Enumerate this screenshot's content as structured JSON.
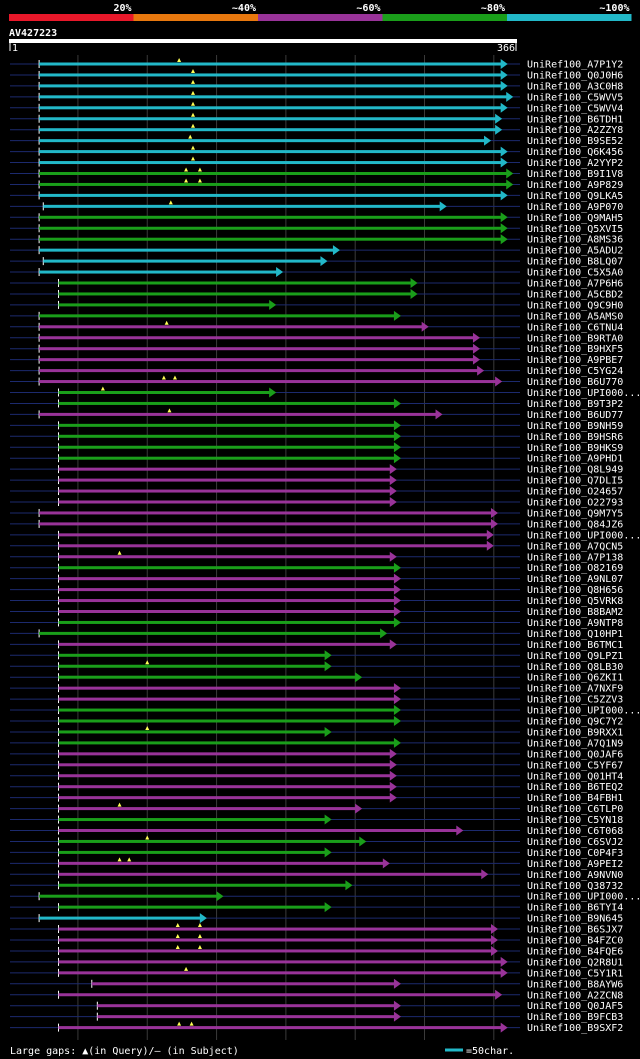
{
  "chart_data": {
    "type": "alignment-overview",
    "query": {
      "name": "AV427223",
      "start": 1,
      "end": 366
    },
    "identity_legend": [
      {
        "label": "20%",
        "color": "#e8182a"
      },
      {
        "label": "~40%",
        "color": "#e8780e"
      },
      {
        "label": "~60%",
        "color": "#993399"
      },
      {
        "label": "~80%",
        "color": "#1a9e1a"
      },
      {
        "label": "~100%",
        "color": "#22b8c8"
      }
    ],
    "footer": {
      "gaps_label": "Large gaps: ▲(in Query)/– (in Subject)",
      "scale_label": "=50char.",
      "scale_chars": 50
    },
    "hits": [
      {
        "name": "UniRef100_A7P1Y2",
        "start": 22,
        "end": 360,
        "color": "#22b8c8",
        "gaps": [
          123
        ]
      },
      {
        "name": "UniRef100_Q0J0H6",
        "start": 22,
        "end": 360,
        "color": "#22b8c8",
        "gaps": [
          133
        ]
      },
      {
        "name": "UniRef100_A3C0H8",
        "start": 22,
        "end": 360,
        "color": "#22b8c8",
        "gaps": [
          133
        ]
      },
      {
        "name": "UniRef100_C5WVV5",
        "start": 22,
        "end": 364,
        "color": "#22b8c8",
        "gaps": [
          133
        ]
      },
      {
        "name": "UniRef100_C5WVV4",
        "start": 22,
        "end": 360,
        "color": "#22b8c8",
        "gaps": [
          133
        ]
      },
      {
        "name": "UniRef100_B6TDH1",
        "start": 22,
        "end": 356,
        "color": "#22b8c8",
        "gaps": [
          133
        ]
      },
      {
        "name": "UniRef100_A2ZZY8",
        "start": 22,
        "end": 356,
        "color": "#22b8c8",
        "gaps": [
          133
        ]
      },
      {
        "name": "UniRef100_B9SE52",
        "start": 22,
        "end": 348,
        "color": "#22b8c8",
        "gaps": [
          131
        ]
      },
      {
        "name": "UniRef100_Q6K456",
        "start": 22,
        "end": 360,
        "color": "#22b8c8",
        "gaps": [
          133
        ]
      },
      {
        "name": "UniRef100_A2YYP2",
        "start": 22,
        "end": 360,
        "color": "#22b8c8",
        "gaps": [
          133
        ]
      },
      {
        "name": "UniRef100_B9I1V8",
        "start": 22,
        "end": 364,
        "color": "#1a9e1a",
        "gaps": [
          128,
          138
        ]
      },
      {
        "name": "UniRef100_A9P829",
        "start": 22,
        "end": 364,
        "color": "#1a9e1a",
        "gaps": [
          128,
          138
        ]
      },
      {
        "name": "UniRef100_Q9LKA5",
        "start": 22,
        "end": 360,
        "color": "#22b8c8",
        "gaps": []
      },
      {
        "name": "UniRef100_A9P070",
        "start": 25,
        "end": 316,
        "color": "#22b8c8",
        "gaps": [
          117
        ]
      },
      {
        "name": "UniRef100_Q9MAH5",
        "start": 22,
        "end": 360,
        "color": "#1a9e1a",
        "gaps": []
      },
      {
        "name": "UniRef100_Q5XVI5",
        "start": 22,
        "end": 360,
        "color": "#1a9e1a",
        "gaps": []
      },
      {
        "name": "UniRef100_A8MS36",
        "start": 22,
        "end": 360,
        "color": "#1a9e1a",
        "gaps": []
      },
      {
        "name": "UniRef100_A5ADU2",
        "start": 22,
        "end": 239,
        "color": "#22b8c8",
        "gaps": []
      },
      {
        "name": "UniRef100_B8LQ07",
        "start": 25,
        "end": 230,
        "color": "#22b8c8",
        "gaps": []
      },
      {
        "name": "UniRef100_C5X5A0",
        "start": 22,
        "end": 198,
        "color": "#22b8c8",
        "gaps": []
      },
      {
        "name": "UniRef100_A7P6H6",
        "start": 36,
        "end": 295,
        "color": "#1a9e1a",
        "gaps": []
      },
      {
        "name": "UniRef100_A5CBD2",
        "start": 36,
        "end": 295,
        "color": "#1a9e1a",
        "gaps": []
      },
      {
        "name": "UniRef100_Q9C9H0",
        "start": 36,
        "end": 193,
        "color": "#1a9e1a",
        "gaps": []
      },
      {
        "name": "UniRef100_A5AMS0",
        "start": 22,
        "end": 283,
        "color": "#1a9e1a",
        "gaps": []
      },
      {
        "name": "UniRef100_C6TNU4",
        "start": 22,
        "end": 303,
        "color": "#993399",
        "gaps": [
          114
        ]
      },
      {
        "name": "UniRef100_B9RTA0",
        "start": 22,
        "end": 340,
        "color": "#993399",
        "gaps": []
      },
      {
        "name": "UniRef100_B9HXF5",
        "start": 22,
        "end": 340,
        "color": "#993399",
        "gaps": []
      },
      {
        "name": "UniRef100_A9PBE7",
        "start": 22,
        "end": 340,
        "color": "#993399",
        "gaps": []
      },
      {
        "name": "UniRef100_C5YG24",
        "start": 22,
        "end": 343,
        "color": "#993399",
        "gaps": []
      },
      {
        "name": "UniRef100_B6U770",
        "start": 22,
        "end": 356,
        "color": "#993399",
        "gaps": [
          112,
          120
        ]
      },
      {
        "name": "UniRef100_UPI000...",
        "start": 36,
        "end": 193,
        "color": "#1a9e1a",
        "gaps": [
          68
        ]
      },
      {
        "name": "UniRef100_B9T3P2",
        "start": 36,
        "end": 283,
        "color": "#1a9e1a",
        "gaps": []
      },
      {
        "name": "UniRef100_B6UD77",
        "start": 22,
        "end": 313,
        "color": "#993399",
        "gaps": [
          116
        ]
      },
      {
        "name": "UniRef100_B9NH59",
        "start": 36,
        "end": 283,
        "color": "#1a9e1a",
        "gaps": []
      },
      {
        "name": "UniRef100_B9HSR6",
        "start": 36,
        "end": 283,
        "color": "#1a9e1a",
        "gaps": []
      },
      {
        "name": "UniRef100_B9HKS9",
        "start": 36,
        "end": 283,
        "color": "#1a9e1a",
        "gaps": []
      },
      {
        "name": "UniRef100_A9PHD1",
        "start": 36,
        "end": 283,
        "color": "#1a9e1a",
        "gaps": []
      },
      {
        "name": "UniRef100_Q8L949",
        "start": 36,
        "end": 280,
        "color": "#993399",
        "gaps": []
      },
      {
        "name": "UniRef100_Q7DLI5",
        "start": 36,
        "end": 280,
        "color": "#993399",
        "gaps": []
      },
      {
        "name": "UniRef100_O24657",
        "start": 36,
        "end": 280,
        "color": "#993399",
        "gaps": []
      },
      {
        "name": "UniRef100_O22793",
        "start": 36,
        "end": 280,
        "color": "#993399",
        "gaps": []
      },
      {
        "name": "UniRef100_Q9M7Y5",
        "start": 22,
        "end": 353,
        "color": "#993399",
        "gaps": []
      },
      {
        "name": "UniRef100_Q84JZ6",
        "start": 22,
        "end": 353,
        "color": "#993399",
        "gaps": []
      },
      {
        "name": "UniRef100_UPI000...",
        "start": 36,
        "end": 350,
        "color": "#993399",
        "gaps": []
      },
      {
        "name": "UniRef100_A7QCN5",
        "start": 36,
        "end": 350,
        "color": "#993399",
        "gaps": []
      },
      {
        "name": "UniRef100_A7P138",
        "start": 36,
        "end": 280,
        "color": "#993399",
        "gaps": [
          80
        ]
      },
      {
        "name": "UniRef100_O82169",
        "start": 36,
        "end": 283,
        "color": "#1a9e1a",
        "gaps": []
      },
      {
        "name": "UniRef100_A9NL07",
        "start": 36,
        "end": 283,
        "color": "#993399",
        "gaps": []
      },
      {
        "name": "UniRef100_Q8H656",
        "start": 36,
        "end": 283,
        "color": "#993399",
        "gaps": []
      },
      {
        "name": "UniRef100_Q5VRK8",
        "start": 36,
        "end": 283,
        "color": "#993399",
        "gaps": []
      },
      {
        "name": "UniRef100_B8BAM2",
        "start": 36,
        "end": 283,
        "color": "#993399",
        "gaps": []
      },
      {
        "name": "UniRef100_A9NTP8",
        "start": 36,
        "end": 283,
        "color": "#1a9e1a",
        "gaps": []
      },
      {
        "name": "UniRef100_Q10HP1",
        "start": 22,
        "end": 273,
        "color": "#1a9e1a",
        "gaps": []
      },
      {
        "name": "UniRef100_B6TMC1",
        "start": 36,
        "end": 280,
        "color": "#993399",
        "gaps": []
      },
      {
        "name": "UniRef100_Q9LPZ1",
        "start": 36,
        "end": 233,
        "color": "#1a9e1a",
        "gaps": []
      },
      {
        "name": "UniRef100_Q8LB30",
        "start": 36,
        "end": 233,
        "color": "#1a9e1a",
        "gaps": [
          100
        ]
      },
      {
        "name": "UniRef100_Q6ZKI1",
        "start": 36,
        "end": 255,
        "color": "#1a9e1a",
        "gaps": []
      },
      {
        "name": "UniRef100_A7NXF9",
        "start": 36,
        "end": 283,
        "color": "#993399",
        "gaps": []
      },
      {
        "name": "UniRef100_C5ZZV3",
        "start": 36,
        "end": 283,
        "color": "#993399",
        "gaps": []
      },
      {
        "name": "UniRef100_UPI000...",
        "start": 36,
        "end": 283,
        "color": "#1a9e1a",
        "gaps": []
      },
      {
        "name": "UniRef100_Q9C7Y2",
        "start": 36,
        "end": 283,
        "color": "#1a9e1a",
        "gaps": []
      },
      {
        "name": "UniRef100_B9RXX1",
        "start": 36,
        "end": 233,
        "color": "#1a9e1a",
        "gaps": [
          100
        ]
      },
      {
        "name": "UniRef100_A7Q1N9",
        "start": 36,
        "end": 283,
        "color": "#1a9e1a",
        "gaps": []
      },
      {
        "name": "UniRef100_Q0JAF6",
        "start": 36,
        "end": 280,
        "color": "#993399",
        "gaps": []
      },
      {
        "name": "UniRef100_C5YF67",
        "start": 36,
        "end": 280,
        "color": "#993399",
        "gaps": []
      },
      {
        "name": "UniRef100_Q01HT4",
        "start": 36,
        "end": 280,
        "color": "#993399",
        "gaps": []
      },
      {
        "name": "UniRef100_B6TEQ2",
        "start": 36,
        "end": 280,
        "color": "#993399",
        "gaps": []
      },
      {
        "name": "UniRef100_B4FBH1",
        "start": 36,
        "end": 280,
        "color": "#993399",
        "gaps": []
      },
      {
        "name": "UniRef100_C6TLP0",
        "start": 36,
        "end": 255,
        "color": "#993399",
        "gaps": [
          80
        ]
      },
      {
        "name": "UniRef100_C5YN18",
        "start": 36,
        "end": 233,
        "color": "#1a9e1a",
        "gaps": []
      },
      {
        "name": "UniRef100_C6T068",
        "start": 36,
        "end": 328,
        "color": "#993399",
        "gaps": []
      },
      {
        "name": "UniRef100_C6SVJ2",
        "start": 36,
        "end": 258,
        "color": "#1a9e1a",
        "gaps": [
          100
        ]
      },
      {
        "name": "UniRef100_C0P4F3",
        "start": 36,
        "end": 233,
        "color": "#1a9e1a",
        "gaps": []
      },
      {
        "name": "UniRef100_A9PEI2",
        "start": 36,
        "end": 275,
        "color": "#993399",
        "gaps": [
          80,
          87
        ]
      },
      {
        "name": "UniRef100_A9NVN0",
        "start": 36,
        "end": 346,
        "color": "#993399",
        "gaps": []
      },
      {
        "name": "UniRef100_Q38732",
        "start": 36,
        "end": 248,
        "color": "#1a9e1a",
        "gaps": []
      },
      {
        "name": "UniRef100_UPI000...",
        "start": 22,
        "end": 155,
        "color": "#1a9e1a",
        "gaps": []
      },
      {
        "name": "UniRef100_B6TYI4",
        "start": 36,
        "end": 233,
        "color": "#1a9e1a",
        "gaps": []
      },
      {
        "name": "UniRef100_B9N645",
        "start": 22,
        "end": 143,
        "color": "#22b8c8",
        "gaps": []
      },
      {
        "name": "UniRef100_B6SJX7",
        "start": 36,
        "end": 353,
        "color": "#993399",
        "gaps": [
          122,
          138
        ]
      },
      {
        "name": "UniRef100_B4FZC0",
        "start": 36,
        "end": 353,
        "color": "#993399",
        "gaps": [
          122,
          138
        ]
      },
      {
        "name": "UniRef100_B4FQE6",
        "start": 36,
        "end": 353,
        "color": "#993399",
        "gaps": [
          122,
          138
        ]
      },
      {
        "name": "UniRef100_Q2R8U1",
        "start": 36,
        "end": 360,
        "color": "#993399",
        "gaps": []
      },
      {
        "name": "UniRef100_C5Y1R1",
        "start": 36,
        "end": 360,
        "color": "#993399",
        "gaps": [
          128
        ]
      },
      {
        "name": "UniRef100_B8AYW6",
        "start": 60,
        "end": 283,
        "color": "#993399",
        "gaps": []
      },
      {
        "name": "UniRef100_A2ZCN8",
        "start": 36,
        "end": 356,
        "color": "#993399",
        "gaps": []
      },
      {
        "name": "UniRef100_Q0JAF5",
        "start": 64,
        "end": 283,
        "color": "#993399",
        "gaps": []
      },
      {
        "name": "UniRef100_B9FCB3",
        "start": 64,
        "end": 283,
        "color": "#993399",
        "gaps": []
      },
      {
        "name": "UniRef100_B9SXF2",
        "start": 36,
        "end": 360,
        "color": "#993399",
        "gaps": [
          123,
          132
        ]
      }
    ]
  }
}
